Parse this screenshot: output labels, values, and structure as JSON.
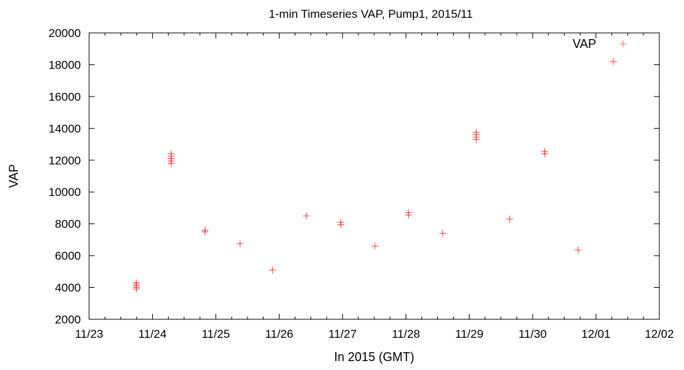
{
  "chart_data": {
    "type": "scatter",
    "title": "1-min Timeseries VAP, Pump1, 2015/11",
    "xlabel": "In 2015 (GMT)",
    "ylabel": "VAP",
    "x_ticks": [
      "11/23",
      "11/24",
      "11/25",
      "11/26",
      "11/27",
      "11/28",
      "11/29",
      "11/30",
      "12/01",
      "12/02"
    ],
    "y_ticks": [
      "2000",
      "4000",
      "6000",
      "8000",
      "10000",
      "12000",
      "14000",
      "16000",
      "18000",
      "20000"
    ],
    "ylim": [
      2000,
      20000
    ],
    "xlim": [
      "2015-11-23 00:00",
      "2015-12-02 00:00"
    ],
    "grid": false,
    "legend_position": "top-right",
    "series": [
      {
        "name": "VAP",
        "color": "#ff0000",
        "marker": "plus",
        "clusters": [
          {
            "x": "2015-11-23 17:55",
            "y": [
              3900,
              4000,
              4100,
              4200,
              4300
            ]
          },
          {
            "x": "2015-11-24 07:05",
            "y": [
              11800,
              11950,
              12100,
              12250,
              12400
            ]
          },
          {
            "x": "2015-11-24 19:55",
            "y": [
              7500,
              7600
            ]
          },
          {
            "x": "2015-11-25 09:10",
            "y": [
              6750
            ]
          },
          {
            "x": "2015-11-25 21:30",
            "y": [
              5100
            ]
          },
          {
            "x": "2015-11-26 10:20",
            "y": [
              8500
            ]
          },
          {
            "x": "2015-11-26 23:20",
            "y": [
              7950,
              8100
            ]
          },
          {
            "x": "2015-11-27 12:15",
            "y": [
              6600
            ]
          },
          {
            "x": "2015-11-28 01:00",
            "y": [
              8550,
              8700
            ]
          },
          {
            "x": "2015-11-28 13:55",
            "y": [
              7400
            ]
          },
          {
            "x": "2015-11-29 02:40",
            "y": [
              13300,
              13450,
              13600,
              13750
            ]
          },
          {
            "x": "2015-11-29 15:20",
            "y": [
              8300
            ]
          },
          {
            "x": "2015-11-30 04:35",
            "y": [
              12400,
              12550
            ]
          },
          {
            "x": "2015-11-30 17:15",
            "y": [
              6350
            ]
          },
          {
            "x": "2015-12-01 06:35",
            "y": [
              18200
            ]
          }
        ]
      }
    ]
  }
}
